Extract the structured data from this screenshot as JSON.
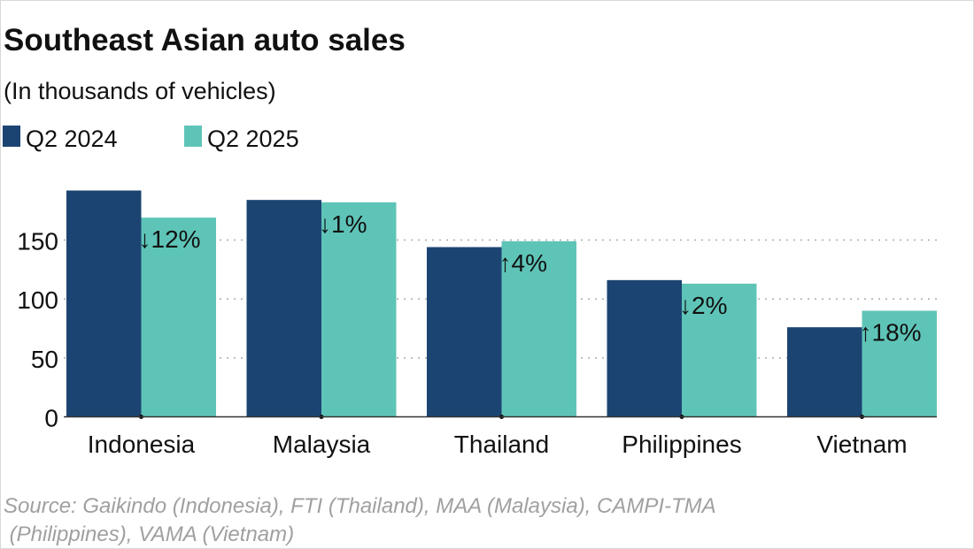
{
  "chart_data": {
    "type": "bar",
    "title": "Southeast Asian auto sales",
    "subtitle": "(In thousands of vehicles)",
    "categories": [
      "Indonesia",
      "Malaysia",
      "Thailand",
      "Philippines",
      "Vietnam"
    ],
    "series": [
      {
        "name": "Q2 2024",
        "color": "#1c4472",
        "values": [
          192,
          184,
          144,
          116,
          76
        ]
      },
      {
        "name": "Q2 2025",
        "color": "#5fc4b8",
        "values": [
          169,
          182,
          149,
          113,
          90
        ]
      }
    ],
    "annotations": [
      "↓12%",
      "↓1%",
      "↑4%",
      "↓2%",
      "↑18%"
    ],
    "yticks": [
      "0",
      "50",
      "100",
      "150"
    ],
    "ylim": [
      0,
      192
    ],
    "grid": true,
    "legend": "top-left",
    "source_lines": [
      "Source: Gaikindo (Indonesia), FTI (Thailand), MAA (Malaysia), CAMPI-TMA",
      " (Philippines), VAMA (Vietnam)"
    ]
  }
}
